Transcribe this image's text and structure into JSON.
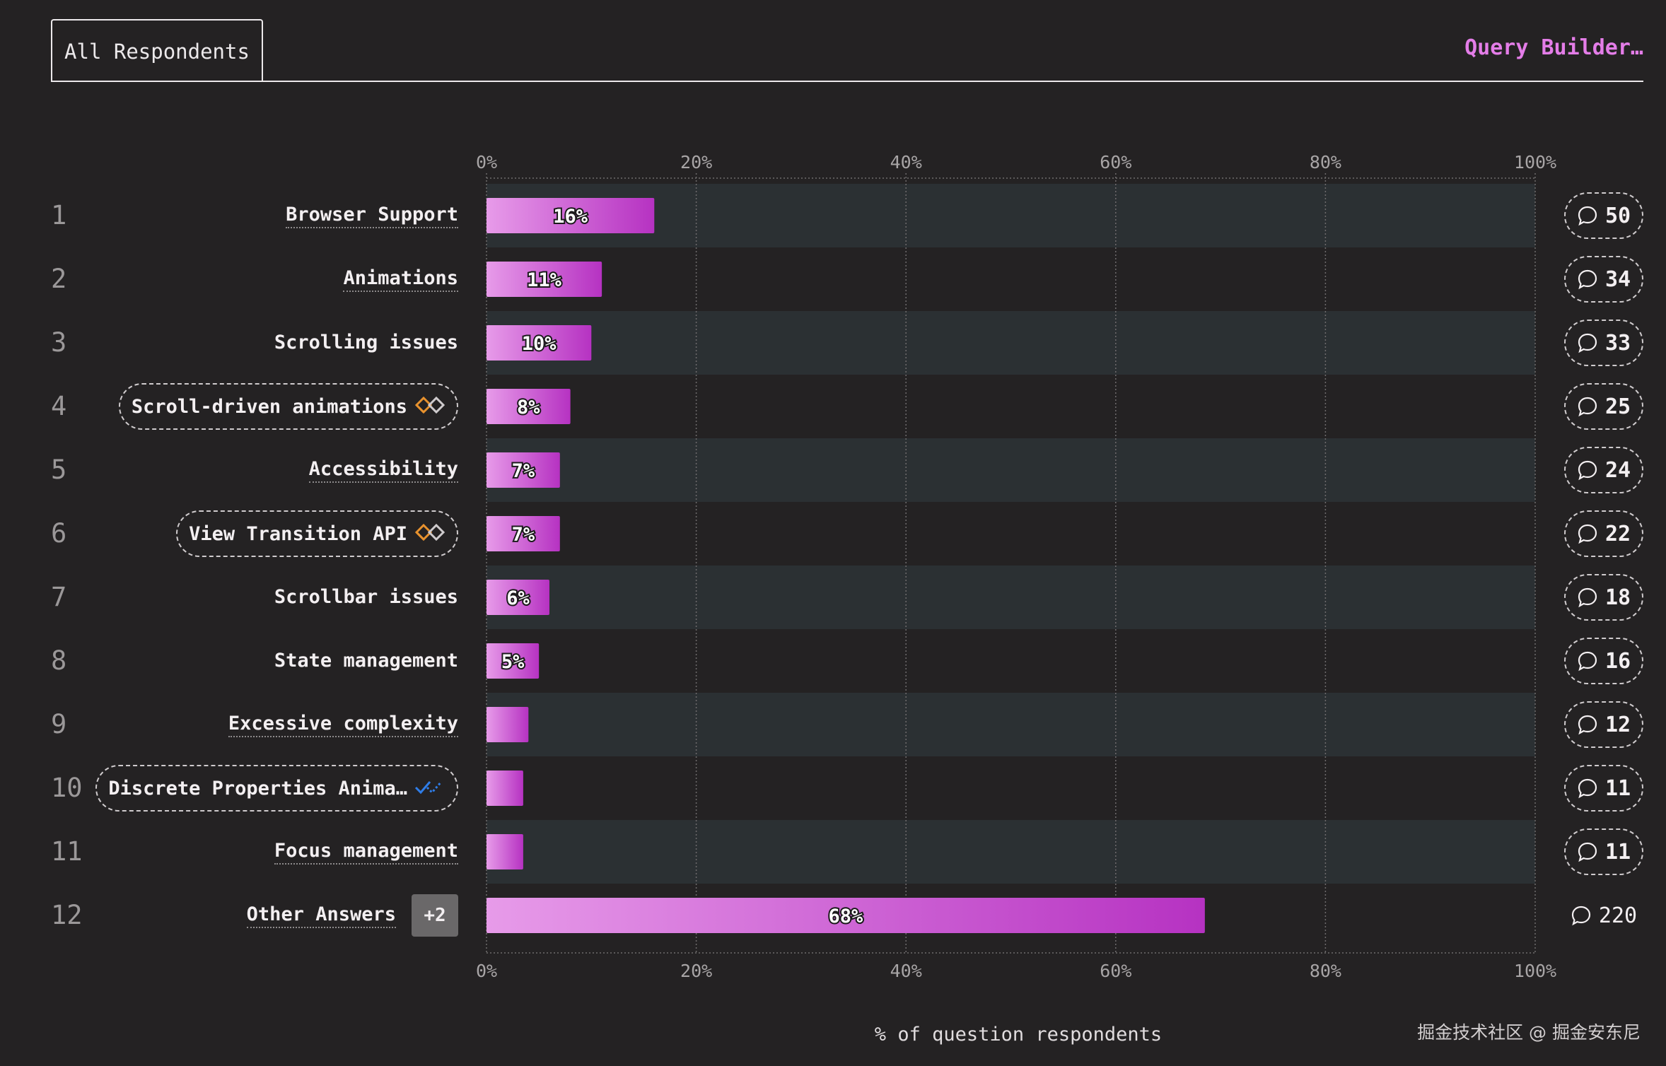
{
  "tabs": [
    {
      "label": "All Respondents"
    }
  ],
  "query_builder_label": "Query Builder…",
  "watermark": "掘金技术社区 @ 掘金安东尼",
  "colors": {
    "background": "#242223",
    "band": "#2b3033",
    "bar_start": "#e79be9",
    "bar_end": "#b632c2",
    "accent": "#e47de8",
    "icon_orange": "#e8922e",
    "icon_blue": "#2f7de8"
  },
  "chart_data": {
    "type": "bar",
    "orientation": "horizontal",
    "xlabel": "% of question respondents",
    "xlim": [
      0,
      100
    ],
    "x_ticks": [
      "0%",
      "20%",
      "40%",
      "60%",
      "80%",
      "100%"
    ],
    "grid": true,
    "categories": [
      {
        "rank": "1",
        "name": "Browser Support",
        "value": 16,
        "value_label": "16%",
        "count": "50",
        "feature_icon": null
      },
      {
        "rank": "2",
        "name": "Animations",
        "value": 11,
        "value_label": "11%",
        "count": "34",
        "feature_icon": null
      },
      {
        "rank": "3",
        "name": "Scrolling issues",
        "value": 10,
        "value_label": "10%",
        "count": "33",
        "feature_icon": null
      },
      {
        "rank": "4",
        "name": "Scroll-driven animations",
        "value": 8,
        "value_label": "8%",
        "count": "25",
        "feature_icon": "limited-availability-icon"
      },
      {
        "rank": "5",
        "name": "Accessibility",
        "value": 7,
        "value_label": "7%",
        "count": "24",
        "feature_icon": null
      },
      {
        "rank": "6",
        "name": "View Transition API",
        "value": 7,
        "value_label": "7%",
        "count": "22",
        "feature_icon": "limited-availability-icon"
      },
      {
        "rank": "7",
        "name": "Scrollbar issues",
        "value": 6,
        "value_label": "6%",
        "count": "18",
        "feature_icon": null
      },
      {
        "rank": "8",
        "name": "State management",
        "value": 5,
        "value_label": "5%",
        "count": "16",
        "feature_icon": null
      },
      {
        "rank": "9",
        "name": "Excessive complexity",
        "value": 4,
        "value_label": "",
        "count": "12",
        "feature_icon": null
      },
      {
        "rank": "10",
        "name": "Discrete Properties Anima…",
        "value": 3.5,
        "value_label": "",
        "count": "11",
        "feature_icon": "newly-available-icon"
      },
      {
        "rank": "11",
        "name": "Focus management",
        "value": 3.5,
        "value_label": "",
        "count": "11",
        "feature_icon": null
      },
      {
        "rank": "12",
        "name": "Other Answers",
        "value": 68.5,
        "value_label": "68%",
        "count": "220",
        "feature_icon": null,
        "badge": "+2"
      }
    ]
  }
}
